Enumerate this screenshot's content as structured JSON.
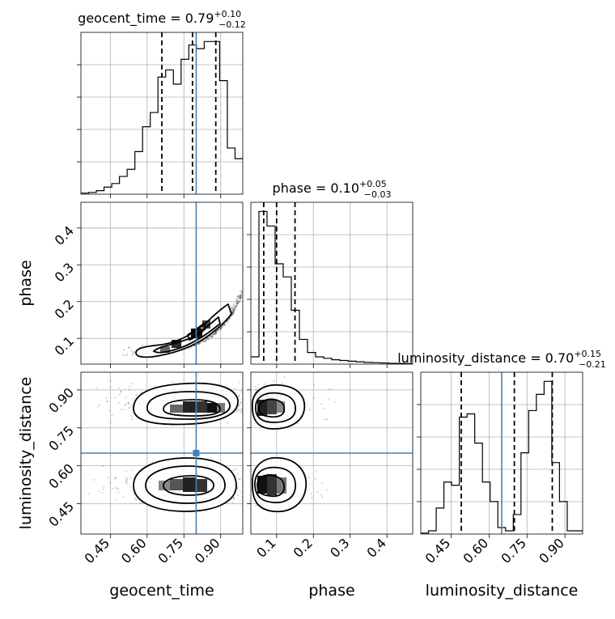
{
  "chart_data": {
    "type": "corner",
    "parameters": [
      "geocent_time",
      "phase",
      "luminosity_distance"
    ],
    "truths": {
      "geocent_time": 0.8,
      "phase": null,
      "luminosity_distance": 0.65
    },
    "titles": [
      {
        "param": "geocent_time",
        "prefix": "geocent_time = ",
        "median": "0.79",
        "plus": "+0.10",
        "minus": "−0.12"
      },
      {
        "param": "phase",
        "prefix": "phase = ",
        "median": "0.10",
        "plus": "+0.05",
        "minus": "−0.03"
      },
      {
        "param": "luminosity_distance",
        "prefix": "luminosity_distance = ",
        "median": "0.70",
        "plus": "+0.15",
        "minus": "−0.21"
      }
    ],
    "marginals": [
      {
        "param": "geocent_time",
        "range": [
          0.33,
          0.99
        ],
        "counts": [
          0.3,
          0.5,
          1,
          2,
          3,
          5,
          7,
          12,
          19,
          23,
          33,
          35,
          31,
          38,
          42,
          41,
          43,
          43,
          32,
          13,
          10
        ],
        "quantiles": [
          0.66,
          0.785,
          0.88
        ]
      },
      {
        "param": "phase",
        "range": [
          0.03,
          0.47
        ],
        "counts": [
          5,
          105,
          95,
          69,
          60,
          37,
          17,
          8,
          5,
          4,
          3,
          2.5,
          2,
          1.6,
          1.2,
          1,
          0.8,
          0.6,
          0.5,
          0.4
        ],
        "quantiles": [
          0.065,
          0.1,
          0.15
        ]
      },
      {
        "param": "luminosity_distance",
        "range": [
          0.33,
          0.97
        ],
        "counts": [
          0.3,
          1,
          8,
          16,
          15,
          36,
          37,
          28,
          16,
          10,
          2,
          1,
          6,
          25,
          38,
          43,
          47,
          22,
          10,
          1,
          1
        ],
        "quantiles": [
          0.49,
          0.7,
          0.85
        ]
      }
    ],
    "pairs": [
      {
        "x": "geocent_time",
        "y": "phase",
        "relation": "phase rises steeply with geocent_time, peak density near (0.8, 0.11)"
      },
      {
        "x": "geocent_time",
        "y": "luminosity_distance",
        "relation": "two modes at luminosity_distance ≈ 0.85 and 0.52"
      },
      {
        "x": "phase",
        "y": "luminosity_distance",
        "relation": "two modes at luminosity_distance ≈ 0.85 and 0.52, phase ≈ 0.07"
      }
    ],
    "ticks": {
      "geocent_time": [
        "0.45",
        "0.60",
        "0.75",
        "0.90"
      ],
      "phase": [
        "0.1",
        "0.2",
        "0.3",
        "0.4"
      ],
      "luminosity_distance": [
        "0.45",
        "0.60",
        "0.75",
        "0.90"
      ]
    },
    "axis_labels": {
      "geocent_time": "geocent_time",
      "phase": "phase",
      "luminosity_distance": "luminosity_distance"
    },
    "colors": {
      "truth": "#4682b4",
      "hist": "#000000",
      "density": "#000000"
    }
  }
}
